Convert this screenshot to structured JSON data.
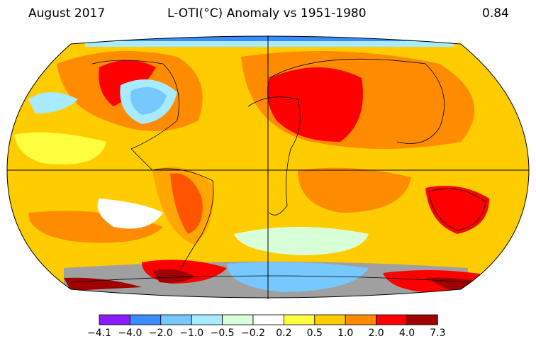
{
  "header": {
    "date": "August 2017",
    "title": "L-OTI(°C) Anomaly vs 1951-1980",
    "global_mean": "0.84"
  },
  "legend": {
    "colors": [
      "#8a1cff",
      "#3c8cff",
      "#76c8ff",
      "#a8ebff",
      "#d8ffd8",
      "#ffffff",
      "#ffff40",
      "#ffcc00",
      "#ff8c00",
      "#ff0000",
      "#a00000"
    ],
    "tick_labels": [
      "−4.1",
      "−4.0",
      "−2.0",
      "−1.0",
      "−0.5",
      "−0.2",
      "0.2",
      "0.5",
      "1.0",
      "2.0",
      "4.0",
      "7.3"
    ]
  },
  "map": {
    "base_color": "#ffcc00",
    "missing_color": "#a0a0a0",
    "coast_color": "#000000"
  }
}
